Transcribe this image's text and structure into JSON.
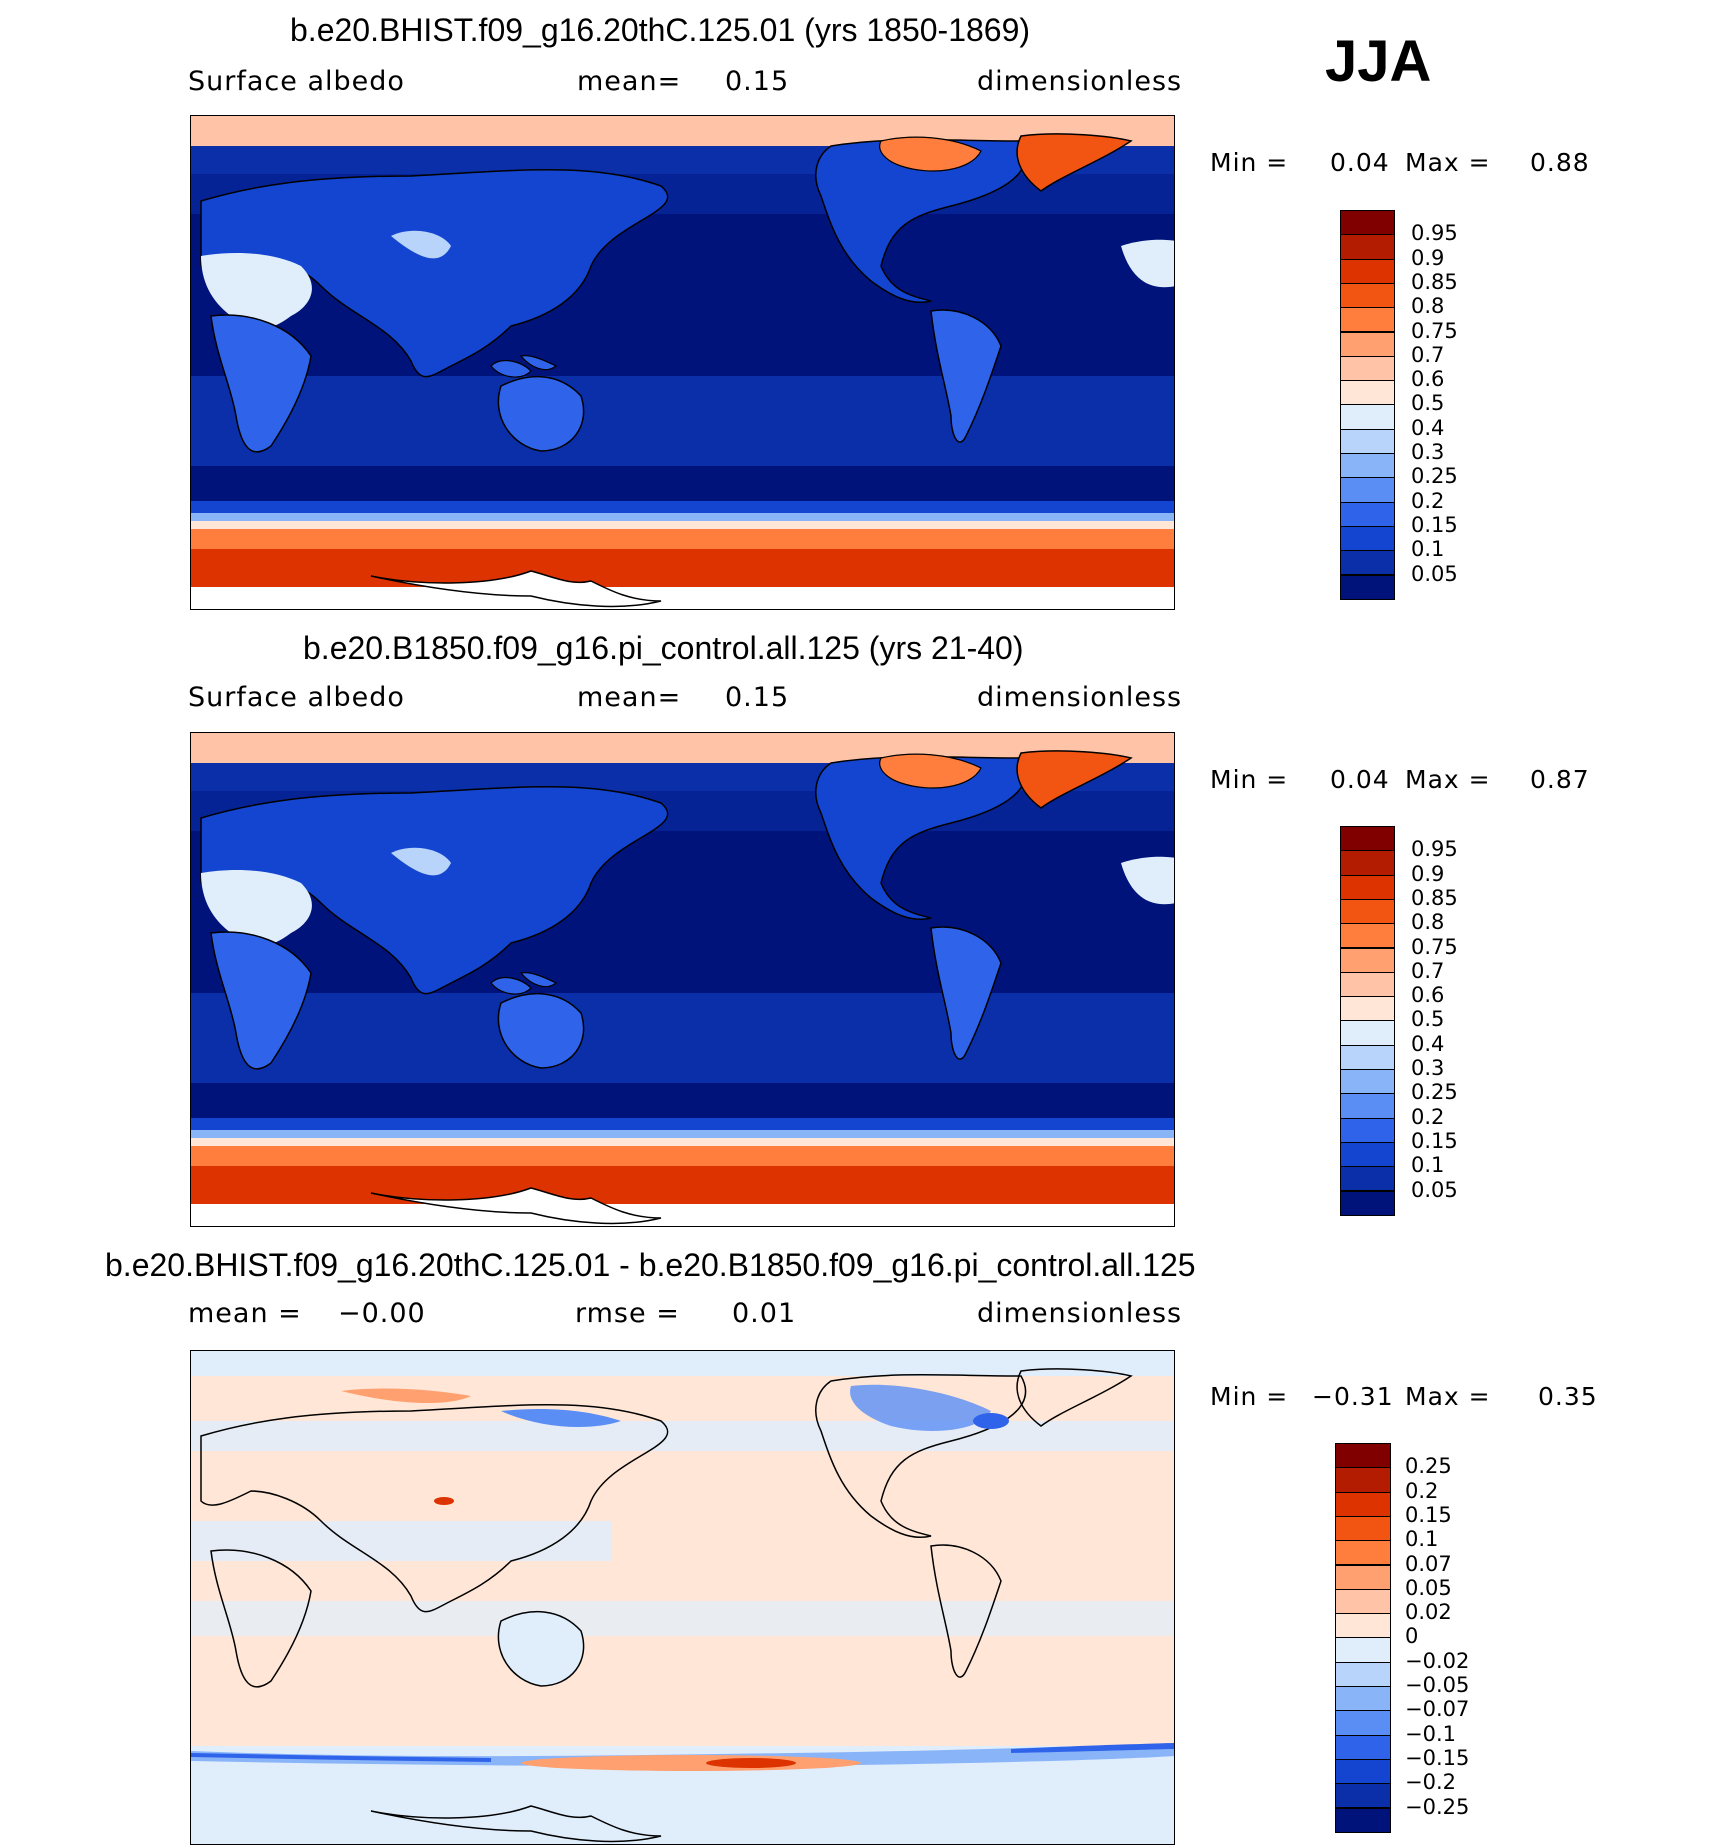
{
  "season": "JJA",
  "panels": [
    {
      "title": "b.e20.BHIST.f09_g16.20thC.125.01 (yrs 1850-1869)",
      "left_label": "Surface albedo",
      "center_label": "mean=",
      "center_value": "0.15",
      "right_label": "dimensionless",
      "min_label": "Min =",
      "min_value": "0.04",
      "max_label": "Max =",
      "max_value": "0.88",
      "field": "albedo"
    },
    {
      "title": "b.e20.B1850.f09_g16.pi_control.all.125 (yrs 21-40)",
      "left_label": "Surface albedo",
      "center_label": "mean=",
      "center_value": "0.15",
      "right_label": "dimensionless",
      "min_label": "Min =",
      "min_value": "0.04",
      "max_label": "Max =",
      "max_value": "0.87",
      "field": "albedo"
    },
    {
      "title": "b.e20.BHIST.f09_g16.20thC.125.01 - b.e20.B1850.f09_g16.pi_control.all.125",
      "left_label": "mean =",
      "left_value": "−0.00",
      "center_label": "rmse =",
      "center_value": "0.01",
      "right_label": "dimensionless",
      "min_label": "Min =",
      "min_value": "−0.31",
      "max_label": "Max =",
      "max_value": "0.35",
      "field": "difference"
    }
  ],
  "colorbars": {
    "albedo": {
      "labels": [
        "0.95",
        "0.9",
        "0.85",
        "0.8",
        "0.75",
        "0.7",
        "0.6",
        "0.5",
        "0.4",
        "0.3",
        "0.25",
        "0.2",
        "0.15",
        "0.1",
        "0.05"
      ],
      "colors": [
        "#800000",
        "#b31c00",
        "#dd3300",
        "#f25512",
        "#ff7e3e",
        "#ffa070",
        "#ffc4a8",
        "#ffe6d6",
        "#e0eefc",
        "#b9d4fa",
        "#8ab4f8",
        "#5a8ef5",
        "#2f64ea",
        "#1445d0",
        "#0a2fa8",
        "#00137a"
      ]
    },
    "difference": {
      "labels": [
        "0.25",
        "0.2",
        "0.15",
        "0.1",
        "0.07",
        "0.05",
        "0.02",
        "0",
        "−0.02",
        "−0.05",
        "−0.07",
        "−0.1",
        "−0.15",
        "−0.2",
        "−0.25"
      ],
      "colors": [
        "#800000",
        "#b31c00",
        "#dd3300",
        "#f25512",
        "#ff7e3e",
        "#ffa070",
        "#ffc4a8",
        "#ffe6d6",
        "#e0eefc",
        "#b9d4fa",
        "#8ab4f8",
        "#5a8ef5",
        "#2f64ea",
        "#1445d0",
        "#0a2fa8",
        "#00137a"
      ]
    }
  }
}
